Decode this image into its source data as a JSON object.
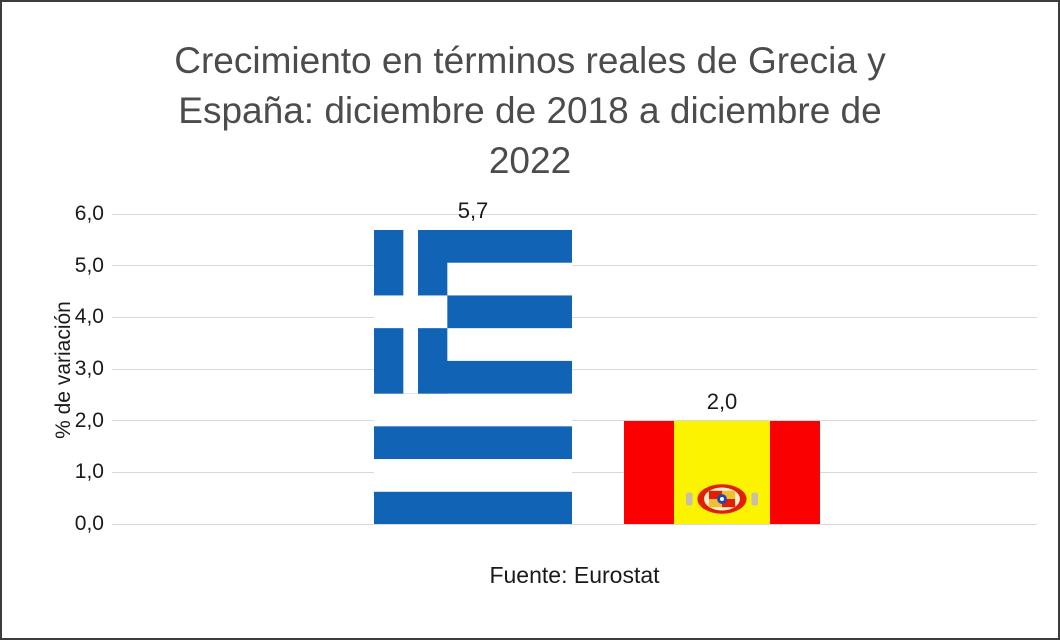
{
  "chart_data": {
    "type": "bar",
    "title": "Crecimiento en términos reales de Grecia y España: diciembre de 2018 a diciembre de 2022",
    "title_lines": [
      "Crecimiento en términos reales de Grecia y",
      "España: diciembre de 2018 a diciembre de",
      "2022"
    ],
    "ylabel": "% de variación",
    "caption": "Fuente: Eurostat",
    "categories": [
      "Grecia",
      "España"
    ],
    "values": [
      5.7,
      2.0
    ],
    "value_labels": [
      "5,7",
      "2,0"
    ],
    "ylim": [
      0,
      6
    ],
    "ytick_interval": 1,
    "ytick_labels": [
      "0,0",
      "1,0",
      "2,0",
      "3,0",
      "4,0",
      "5,0",
      "6,0"
    ],
    "grid": true,
    "legend": "none",
    "bar_fills": [
      "flag-greece",
      "flag-spain"
    ],
    "colors": {
      "greece_blue": "#1163B5",
      "spain_red": "#FA0000",
      "spain_yellow": "#FCF300",
      "title_text": "#4C4C4C",
      "axis_text": "#1A1A1A",
      "gridline": "#D9D9D9",
      "background": "#FFFFFF",
      "border": "#3C3C3C"
    }
  }
}
